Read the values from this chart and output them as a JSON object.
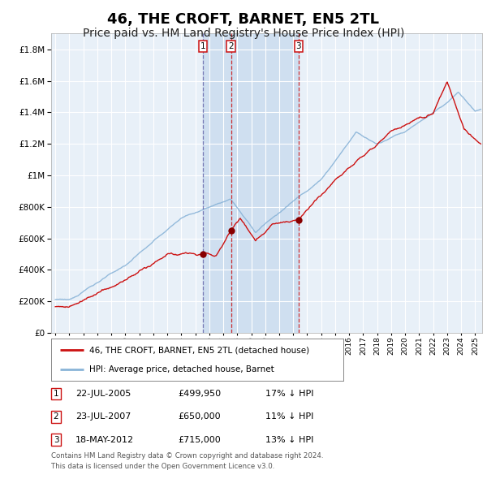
{
  "title": "46, THE CROFT, BARNET, EN5 2TL",
  "subtitle": "Price paid vs. HM Land Registry's House Price Index (HPI)",
  "hpi_label": "HPI: Average price, detached house, Barnet",
  "property_label": "46, THE CROFT, BARNET, EN5 2TL (detached house)",
  "footer1": "Contains HM Land Registry data © Crown copyright and database right 2024.",
  "footer2": "This data is licensed under the Open Government Licence v3.0.",
  "sales": [
    {
      "num": 1,
      "date": "22-JUL-2005",
      "price": 499950,
      "pct": "17%",
      "dir": "↓",
      "x_year": 2005.55
    },
    {
      "num": 2,
      "date": "23-JUL-2007",
      "price": 650000,
      "pct": "11%",
      "dir": "↓",
      "x_year": 2007.55
    },
    {
      "num": 3,
      "date": "18-MAY-2012",
      "price": 715000,
      "pct": "13%",
      "dir": "↓",
      "x_year": 2012.38
    }
  ],
  "vline1_x": 2005.55,
  "vline2_x": 2007.55,
  "vline3_x": 2012.38,
  "ylim": [
    0,
    1900000
  ],
  "xlim_start": 1994.7,
  "xlim_end": 2025.5,
  "plot_bg": "#e8f0f8",
  "grid_color": "#ffffff",
  "hpi_color": "#8ab4d8",
  "price_color": "#cc1111",
  "dot_color": "#880000",
  "title_fontsize": 13,
  "subtitle_fontsize": 10
}
